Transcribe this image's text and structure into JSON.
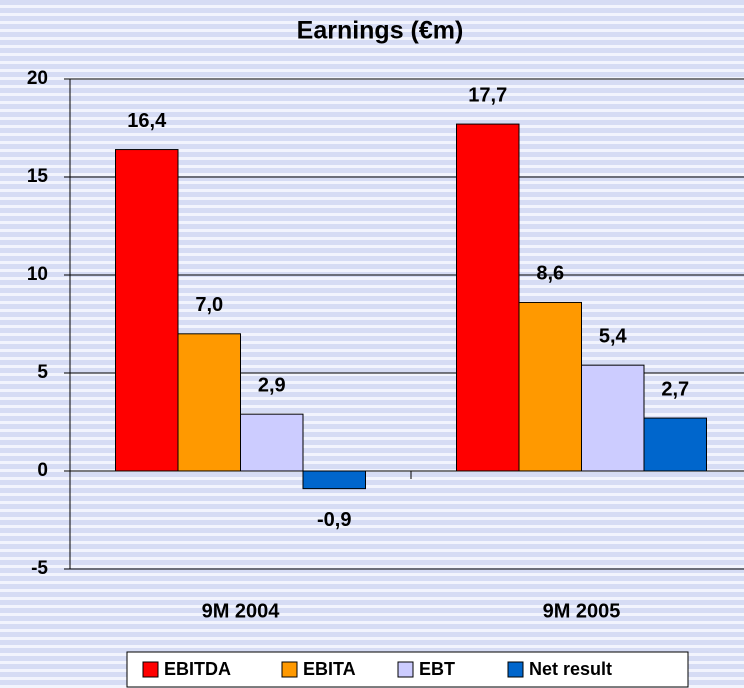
{
  "chart_data": {
    "type": "bar",
    "title": "Earnings (€m)",
    "categories": [
      "9M 2004",
      "9M 2005"
    ],
    "series": [
      {
        "name": "EBITDA",
        "color": "#ff0000",
        "values": [
          16.4,
          17.7
        ],
        "value_labels": [
          "16,4",
          "17,7"
        ]
      },
      {
        "name": "EBITA",
        "color": "#ff9900",
        "values": [
          7.0,
          8.6
        ],
        "value_labels": [
          "7,0",
          "8,6"
        ]
      },
      {
        "name": "EBT",
        "color": "#ccccff",
        "values": [
          2.9,
          5.4
        ],
        "value_labels": [
          "2,9",
          "5,4"
        ]
      },
      {
        "name": "Net result",
        "color": "#0066cc",
        "values": [
          -0.9,
          2.7
        ],
        "value_labels": [
          "-0,9",
          "2,7"
        ]
      }
    ],
    "ylim": [
      -5,
      20
    ],
    "yticks": [
      -5,
      0,
      5,
      10,
      15,
      20
    ],
    "grid": true,
    "legend": "bottom"
  }
}
